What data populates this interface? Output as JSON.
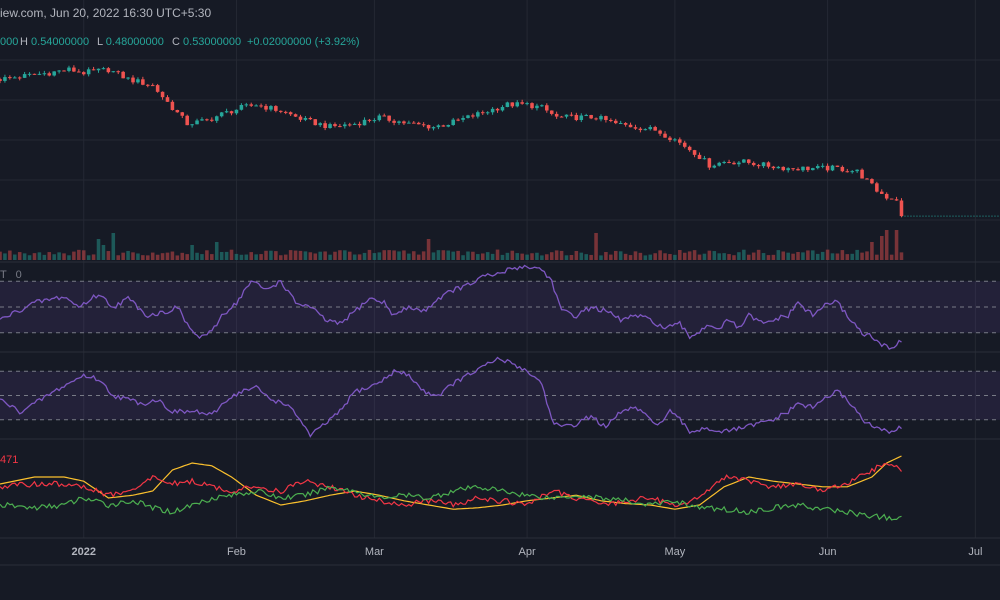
{
  "header": {
    "source": "iew.com, Jun 20, 2022 16:30 UTC+5:30",
    "open_tail": "000",
    "high_label": "H",
    "high_value": "0.54000000",
    "low_label": "L",
    "low_value": "0.48000000",
    "close_label": "C",
    "close_value": "0.53000000",
    "change": "+0.02000000 (+3.92%)"
  },
  "panes": {
    "rsi_label": "T",
    "rsi_label_suffix": "0",
    "dmi_label": "471"
  },
  "colors": {
    "background": "#161a25",
    "up": "#26a69a",
    "down": "#ef5350",
    "oscillator": "#7e57c2",
    "dmi_plus": "#4caf50",
    "dmi_minus": "#f23645",
    "adx": "#fbc02d"
  },
  "chart_data": {
    "type": "candlestick",
    "x_axis": {
      "ticks": [
        {
          "label": "2022",
          "day": 0,
          "bold": true
        },
        {
          "label": "Feb",
          "day": 31
        },
        {
          "label": "Mar",
          "day": 59
        },
        {
          "label": "Apr",
          "day": 90
        },
        {
          "label": "May",
          "day": 120
        },
        {
          "label": "Jun",
          "day": 151
        },
        {
          "label": "Jul",
          "day": 181
        }
      ],
      "range_days": [
        -17,
        186
      ]
    },
    "price": {
      "anchors": [
        [
          -17,
          0.98
        ],
        [
          -12,
          0.99
        ],
        [
          -7,
          1.0
        ],
        [
          -3,
          1.01
        ],
        [
          0,
          1.0
        ],
        [
          5,
          1.01
        ],
        [
          9,
          0.98
        ],
        [
          14,
          0.96
        ],
        [
          18,
          0.89
        ],
        [
          21,
          0.84
        ],
        [
          25,
          0.85
        ],
        [
          28,
          0.87
        ],
        [
          32,
          0.89
        ],
        [
          35,
          0.9
        ],
        [
          40,
          0.88
        ],
        [
          45,
          0.85
        ],
        [
          50,
          0.83
        ],
        [
          55,
          0.84
        ],
        [
          60,
          0.86
        ],
        [
          63,
          0.85
        ],
        [
          66,
          0.84
        ],
        [
          71,
          0.83
        ],
        [
          74,
          0.84
        ],
        [
          78,
          0.86
        ],
        [
          82,
          0.88
        ],
        [
          86,
          0.9
        ],
        [
          90,
          0.9
        ],
        [
          93,
          0.89
        ],
        [
          96,
          0.86
        ],
        [
          100,
          0.86
        ],
        [
          104,
          0.86
        ],
        [
          108,
          0.84
        ],
        [
          112,
          0.83
        ],
        [
          116,
          0.82
        ],
        [
          120,
          0.79
        ],
        [
          124,
          0.75
        ],
        [
          127,
          0.71
        ],
        [
          130,
          0.72
        ],
        [
          134,
          0.72
        ],
        [
          138,
          0.71
        ],
        [
          143,
          0.7
        ],
        [
          148,
          0.7
        ],
        [
          153,
          0.7
        ],
        [
          157,
          0.69
        ],
        [
          159,
          0.66
        ],
        [
          161,
          0.63
        ],
        [
          163,
          0.61
        ],
        [
          166,
          0.6
        ]
      ],
      "last": 0.53
    },
    "volume_spikes": [
      [
        3,
        0.7
      ],
      [
        4,
        0.5
      ],
      [
        6,
        0.9
      ],
      [
        22,
        0.5
      ],
      [
        27,
        0.6
      ],
      [
        70,
        0.7
      ],
      [
        104,
        0.9
      ],
      [
        160,
        0.6
      ],
      [
        162,
        0.8
      ],
      [
        163,
        1.0
      ],
      [
        165,
        1.0
      ]
    ],
    "oscillator_1": {
      "levels": [
        80,
        50,
        20
      ],
      "anchors": [
        [
          -17,
          35
        ],
        [
          -10,
          55
        ],
        [
          -4,
          62
        ],
        [
          -1,
          50
        ],
        [
          3,
          65
        ],
        [
          6,
          50
        ],
        [
          9,
          60
        ],
        [
          13,
          40
        ],
        [
          17,
          45
        ],
        [
          19,
          50
        ],
        [
          21,
          30
        ],
        [
          23,
          15
        ],
        [
          26,
          20
        ],
        [
          28,
          40
        ],
        [
          31,
          55
        ],
        [
          34,
          80
        ],
        [
          37,
          70
        ],
        [
          40,
          80
        ],
        [
          43,
          55
        ],
        [
          46,
          50
        ],
        [
          49,
          35
        ],
        [
          52,
          30
        ],
        [
          55,
          45
        ],
        [
          58,
          60
        ],
        [
          61,
          55
        ],
        [
          63,
          40
        ],
        [
          66,
          50
        ],
        [
          69,
          45
        ],
        [
          72,
          60
        ],
        [
          75,
          70
        ],
        [
          78,
          75
        ],
        [
          81,
          85
        ],
        [
          84,
          88
        ],
        [
          87,
          95
        ],
        [
          89,
          97
        ],
        [
          91,
          96
        ],
        [
          93,
          94
        ],
        [
          95,
          80
        ],
        [
          97,
          45
        ],
        [
          100,
          40
        ],
        [
          103,
          50
        ],
        [
          106,
          45
        ],
        [
          109,
          35
        ],
        [
          112,
          40
        ],
        [
          115,
          35
        ],
        [
          118,
          25
        ],
        [
          121,
          30
        ],
        [
          123,
          15
        ],
        [
          125,
          22
        ],
        [
          127,
          30
        ],
        [
          129,
          25
        ],
        [
          131,
          35
        ],
        [
          133,
          25
        ],
        [
          135,
          40
        ],
        [
          138,
          30
        ],
        [
          140,
          35
        ],
        [
          143,
          40
        ],
        [
          145,
          55
        ],
        [
          148,
          40
        ],
        [
          151,
          55
        ],
        [
          153,
          55
        ],
        [
          155,
          40
        ],
        [
          158,
          20
        ],
        [
          160,
          15
        ],
        [
          162,
          5
        ],
        [
          164,
          3
        ],
        [
          166,
          10
        ]
      ]
    },
    "oscillator_2": {
      "levels": [
        80,
        50,
        20
      ],
      "anchors": [
        [
          -17,
          45
        ],
        [
          -13,
          30
        ],
        [
          -10,
          40
        ],
        [
          -6,
          55
        ],
        [
          -3,
          65
        ],
        [
          0,
          75
        ],
        [
          3,
          70
        ],
        [
          6,
          50
        ],
        [
          9,
          45
        ],
        [
          12,
          40
        ],
        [
          15,
          45
        ],
        [
          18,
          30
        ],
        [
          20,
          30
        ],
        [
          23,
          30
        ],
        [
          26,
          25
        ],
        [
          29,
          45
        ],
        [
          32,
          55
        ],
        [
          35,
          60
        ],
        [
          38,
          45
        ],
        [
          41,
          40
        ],
        [
          44,
          20
        ],
        [
          46,
          0
        ],
        [
          49,
          15
        ],
        [
          52,
          30
        ],
        [
          55,
          55
        ],
        [
          58,
          60
        ],
        [
          61,
          70
        ],
        [
          63,
          80
        ],
        [
          66,
          75
        ],
        [
          69,
          55
        ],
        [
          72,
          50
        ],
        [
          75,
          65
        ],
        [
          78,
          75
        ],
        [
          81,
          85
        ],
        [
          84,
          95
        ],
        [
          87,
          90
        ],
        [
          90,
          80
        ],
        [
          93,
          65
        ],
        [
          95,
          20
        ],
        [
          97,
          10
        ],
        [
          100,
          15
        ],
        [
          103,
          25
        ],
        [
          106,
          10
        ],
        [
          109,
          30
        ],
        [
          112,
          35
        ],
        [
          115,
          20
        ],
        [
          117,
          15
        ],
        [
          119,
          30
        ],
        [
          121,
          20
        ],
        [
          123,
          5
        ],
        [
          126,
          10
        ],
        [
          130,
          5
        ],
        [
          135,
          12
        ],
        [
          140,
          20
        ],
        [
          143,
          30
        ],
        [
          145,
          40
        ],
        [
          148,
          35
        ],
        [
          150,
          45
        ],
        [
          153,
          55
        ],
        [
          155,
          45
        ],
        [
          157,
          30
        ],
        [
          159,
          15
        ],
        [
          161,
          10
        ],
        [
          163,
          5
        ],
        [
          166,
          10
        ]
      ]
    },
    "dmi": {
      "series": [
        {
          "name": "",
          "color": "#fbc02d",
          "anchors": [
            [
              -17,
              20
            ],
            [
              -10,
              25
            ],
            [
              -4,
              25
            ],
            [
              0,
              22
            ],
            [
              5,
              10
            ],
            [
              10,
              12
            ],
            [
              14,
              15
            ],
            [
              18,
              30
            ],
            [
              22,
              35
            ],
            [
              26,
              33
            ],
            [
              30,
              25
            ],
            [
              35,
              12
            ],
            [
              40,
              5
            ],
            [
              45,
              8
            ],
            [
              50,
              12
            ],
            [
              55,
              15
            ],
            [
              60,
              12
            ],
            [
              65,
              8
            ],
            [
              70,
              5
            ],
            [
              75,
              2
            ],
            [
              80,
              3
            ],
            [
              85,
              5
            ],
            [
              90,
              8
            ],
            [
              95,
              10
            ],
            [
              100,
              12
            ],
            [
              105,
              8
            ],
            [
              110,
              6
            ],
            [
              115,
              5
            ],
            [
              120,
              2
            ],
            [
              125,
              5
            ],
            [
              130,
              18
            ],
            [
              135,
              25
            ],
            [
              140,
              22
            ],
            [
              145,
              20
            ],
            [
              150,
              18
            ],
            [
              155,
              18
            ],
            [
              160,
              25
            ],
            [
              163,
              35
            ],
            [
              166,
              40
            ]
          ]
        },
        {
          "name": "",
          "color": "#f23645",
          "anchors": [
            [
              -17,
              18
            ],
            [
              -10,
              20
            ],
            [
              -4,
              20
            ],
            [
              0,
              18
            ],
            [
              5,
              12
            ],
            [
              10,
              15
            ],
            [
              14,
              25
            ],
            [
              18,
              20
            ],
            [
              22,
              22
            ],
            [
              26,
              18
            ],
            [
              30,
              15
            ],
            [
              35,
              18
            ],
            [
              40,
              15
            ],
            [
              45,
              22
            ],
            [
              50,
              18
            ],
            [
              55,
              12
            ],
            [
              60,
              8
            ],
            [
              65,
              5
            ],
            [
              70,
              8
            ],
            [
              75,
              5
            ],
            [
              80,
              10
            ],
            [
              85,
              8
            ],
            [
              90,
              5
            ],
            [
              95,
              15
            ],
            [
              100,
              10
            ],
            [
              105,
              5
            ],
            [
              110,
              8
            ],
            [
              115,
              10
            ],
            [
              120,
              5
            ],
            [
              125,
              10
            ],
            [
              130,
              25
            ],
            [
              135,
              22
            ],
            [
              140,
              18
            ],
            [
              145,
              20
            ],
            [
              150,
              15
            ],
            [
              155,
              20
            ],
            [
              160,
              30
            ],
            [
              163,
              35
            ],
            [
              166,
              30
            ]
          ]
        },
        {
          "name": "",
          "color": "#4caf50",
          "anchors": [
            [
              -17,
              5
            ],
            [
              -10,
              3
            ],
            [
              -4,
              5
            ],
            [
              0,
              10
            ],
            [
              5,
              5
            ],
            [
              10,
              8
            ],
            [
              14,
              3
            ],
            [
              18,
              0
            ],
            [
              22,
              5
            ],
            [
              26,
              10
            ],
            [
              30,
              12
            ],
            [
              35,
              15
            ],
            [
              40,
              10
            ],
            [
              45,
              12
            ],
            [
              50,
              18
            ],
            [
              55,
              15
            ],
            [
              60,
              10
            ],
            [
              65,
              12
            ],
            [
              70,
              10
            ],
            [
              75,
              15
            ],
            [
              80,
              18
            ],
            [
              85,
              15
            ],
            [
              90,
              12
            ],
            [
              95,
              10
            ],
            [
              100,
              12
            ],
            [
              105,
              10
            ],
            [
              110,
              8
            ],
            [
              115,
              5
            ],
            [
              120,
              8
            ],
            [
              125,
              3
            ],
            [
              130,
              2
            ],
            [
              135,
              0
            ],
            [
              140,
              3
            ],
            [
              145,
              5
            ],
            [
              150,
              2
            ],
            [
              155,
              0
            ],
            [
              160,
              -3
            ],
            [
              166,
              -5
            ]
          ]
        }
      ]
    }
  }
}
